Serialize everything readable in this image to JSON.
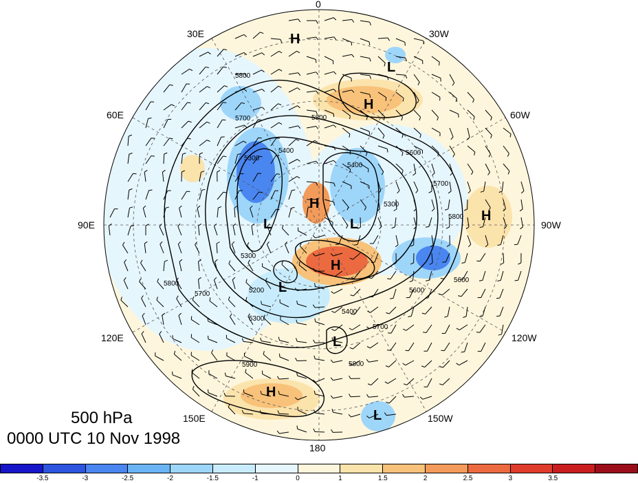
{
  "title": {
    "level": "500 hPa",
    "time": "0000 UTC 10 Nov 1998"
  },
  "map": {
    "projection": "polar-stereographic",
    "hemisphere": "southern",
    "longitude_labels": {
      "top": "0",
      "top_left": "30E",
      "top_right": "30W",
      "upper_left": "60E",
      "upper_right": "60W",
      "left": "90E",
      "right": "90W",
      "lower_left": "120E",
      "lower_right": "120W",
      "bottom_left": "150E",
      "bottom_right": "150W",
      "bottom": "180"
    },
    "centers": [
      {
        "type": "H",
        "label": "H"
      },
      {
        "type": "L",
        "label": "L"
      },
      {
        "type": "H",
        "label": "H"
      },
      {
        "type": "H",
        "label": "H"
      },
      {
        "type": "L",
        "label": "L"
      },
      {
        "type": "L",
        "label": "L"
      },
      {
        "type": "H",
        "label": "H"
      },
      {
        "type": "H",
        "label": "H"
      },
      {
        "type": "L",
        "label": "L"
      },
      {
        "type": "L",
        "label": "L"
      },
      {
        "type": "H",
        "label": "H"
      },
      {
        "type": "L",
        "label": "L"
      }
    ],
    "contour_labels": [
      "5800",
      "5700",
      "5400",
      "5800",
      "5300",
      "5400",
      "5600",
      "5700",
      "5300",
      "5800",
      "5300",
      "5200",
      "5300",
      "5600",
      "5400",
      "5700",
      "5800",
      "5900",
      "5800",
      "5600",
      "5700"
    ]
  },
  "colorbar": {
    "colors": [
      "#1616c8",
      "#2d55e0",
      "#4a86f0",
      "#6ab4f5",
      "#9ed6fa",
      "#c8ecfc",
      "#e6f6fd",
      "#fdf6dc",
      "#fbe3ac",
      "#f8c27a",
      "#f39b5a",
      "#ec6a40",
      "#df3c2c",
      "#c81e20",
      "#9a0e1a"
    ],
    "tick_labels": [
      "-3.5",
      "-3",
      "-2.5",
      "-2",
      "-1.5",
      "-1",
      "0",
      "1",
      "1.5",
      "2",
      "2.5",
      "3",
      "3.5"
    ]
  }
}
